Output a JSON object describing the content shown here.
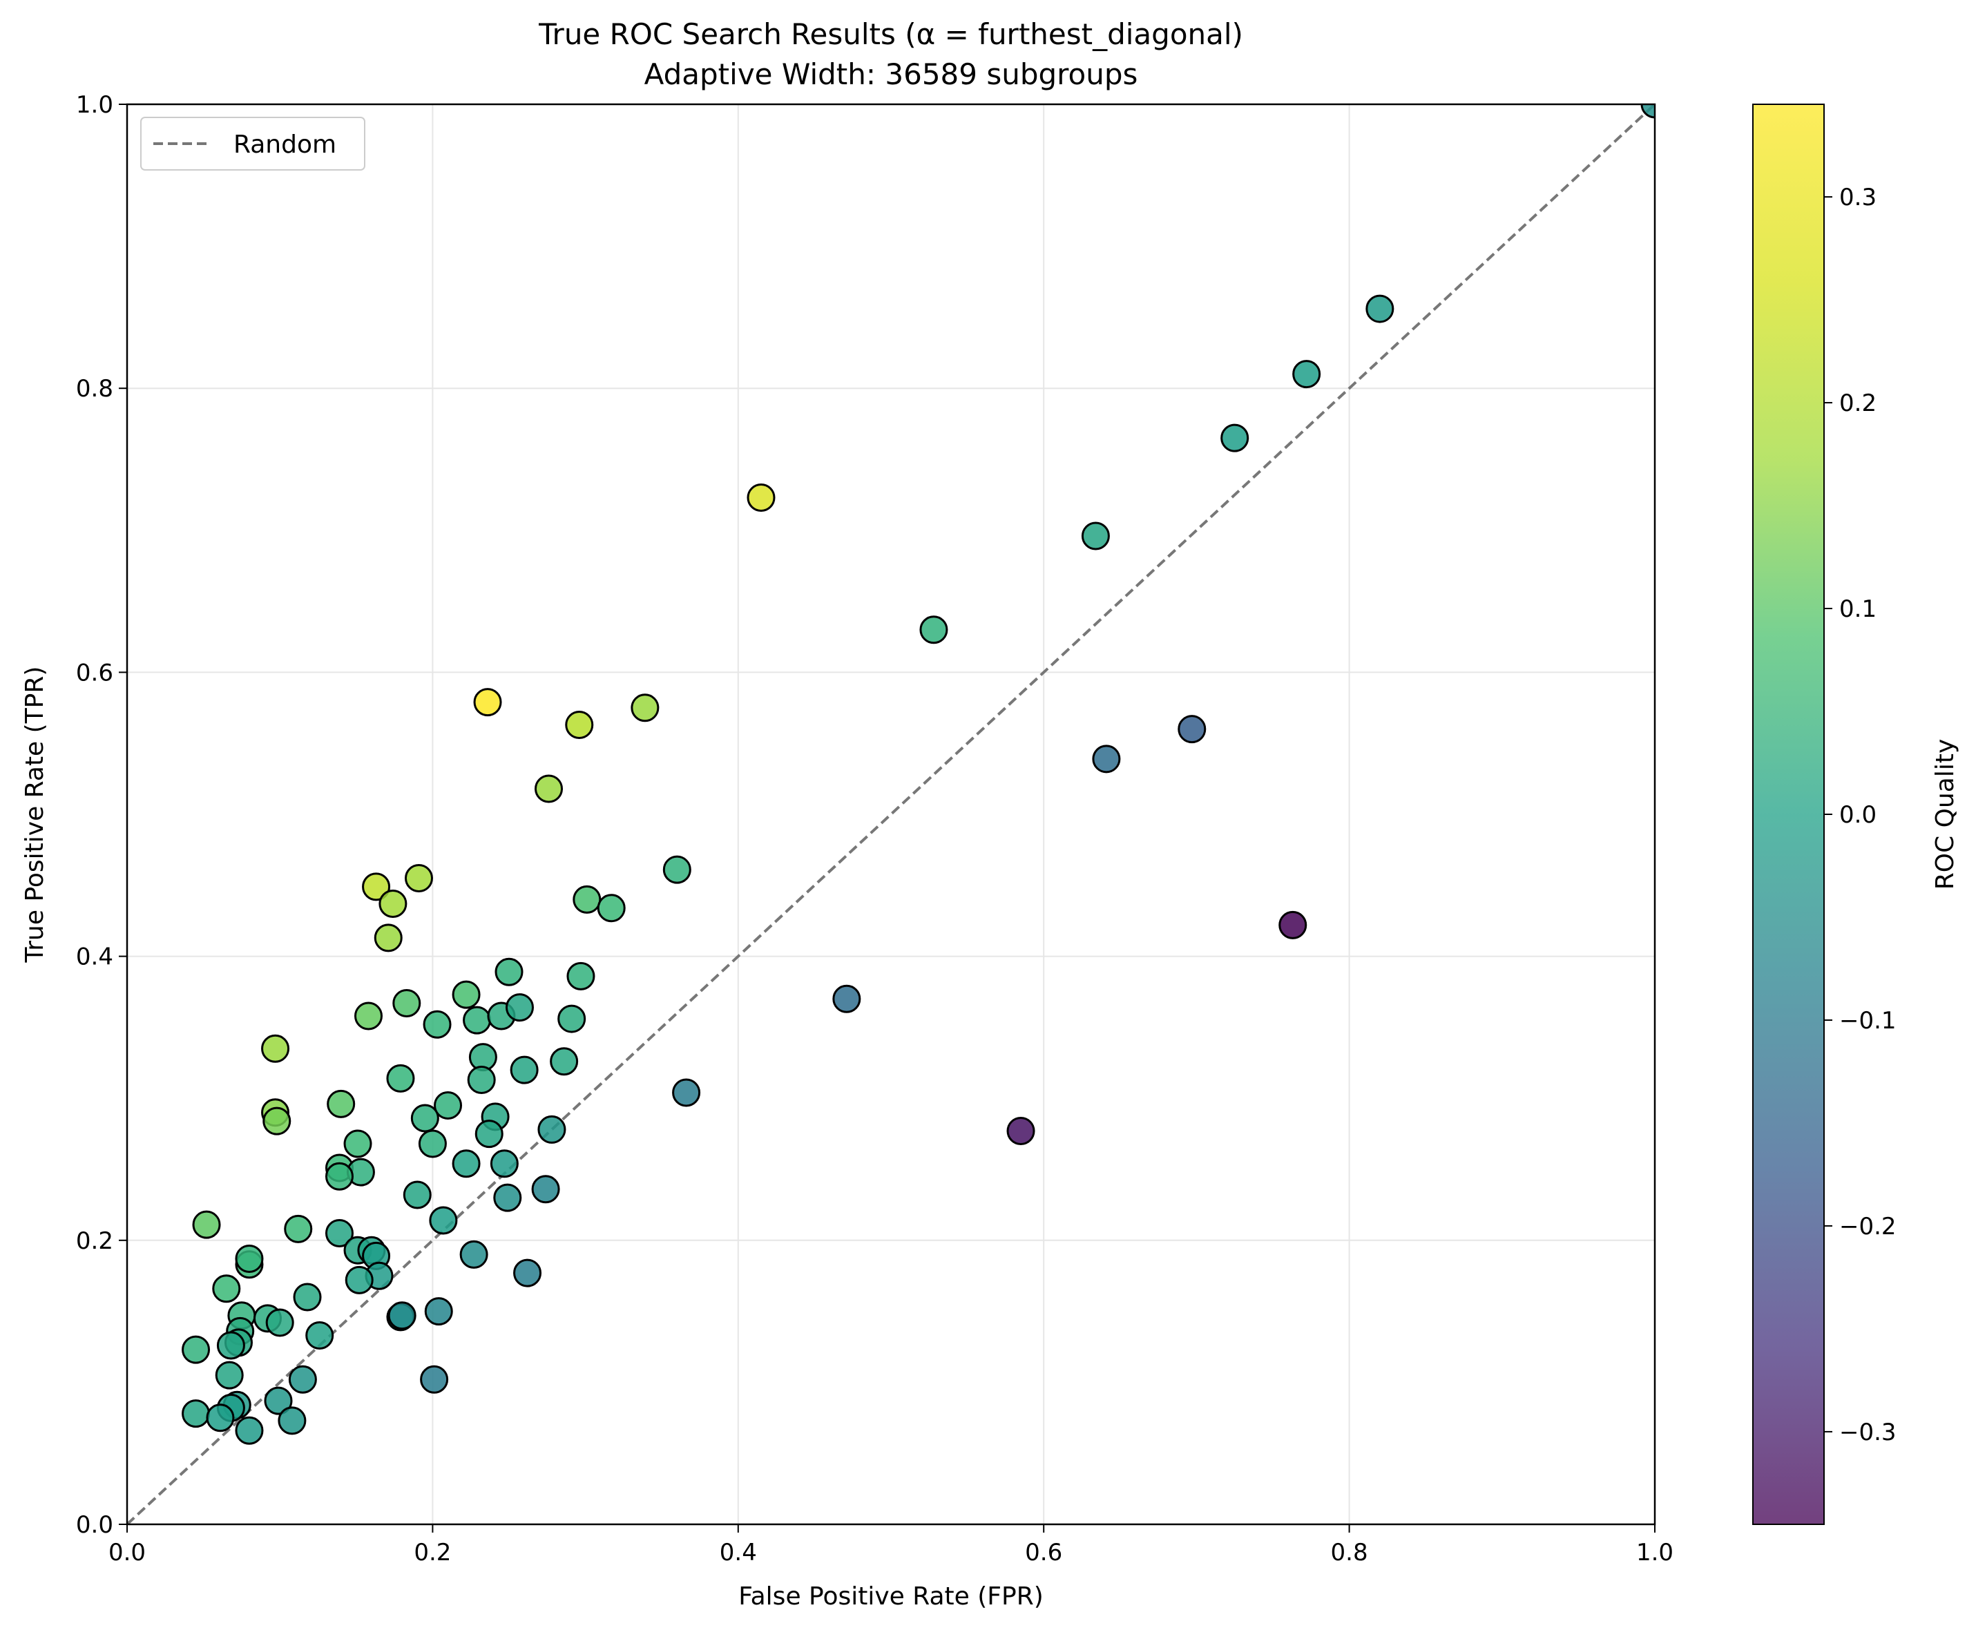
{
  "chart_data": {
    "type": "scatter",
    "title": "True ROC Search Results (α = furthest_diagonal)",
    "subtitle": "Adaptive Width: 36589 subgroups",
    "xlabel": "False Positive Rate (FPR)",
    "ylabel": "True Positive Rate (TPR)",
    "xlim": [
      0,
      1
    ],
    "ylim": [
      0,
      1
    ],
    "xticks": [
      "0.0",
      "0.2",
      "0.4",
      "0.6",
      "0.8",
      "1.0"
    ],
    "yticks": [
      "0.0",
      "0.2",
      "0.4",
      "0.6",
      "0.8",
      "1.0"
    ],
    "grid": true,
    "legend": {
      "position": "top-left",
      "entries": [
        "Random"
      ]
    },
    "reference_line": {
      "name": "Random",
      "style": "dashed",
      "color": "#777777",
      "from": [
        0,
        0
      ],
      "to": [
        1,
        1
      ]
    },
    "colorbar": {
      "label": "ROC Quality",
      "range": [
        -0.345,
        0.345
      ],
      "ticks": [
        "−0.3",
        "−0.2",
        "−0.1",
        "0.0",
        "0.1",
        "0.2",
        "0.3"
      ],
      "colormap": "viridis"
    },
    "points": [
      {
        "fpr": 1.0,
        "tpr": 1.0,
        "q": 0.0
      },
      {
        "fpr": 0.82,
        "tpr": 0.856,
        "q": 0.03
      },
      {
        "fpr": 0.772,
        "tpr": 0.81,
        "q": 0.04
      },
      {
        "fpr": 0.725,
        "tpr": 0.765,
        "q": 0.04
      },
      {
        "fpr": 0.634,
        "tpr": 0.696,
        "q": 0.06
      },
      {
        "fpr": 0.415,
        "tpr": 0.723,
        "q": 0.31
      },
      {
        "fpr": 0.528,
        "tpr": 0.63,
        "q": 0.1
      },
      {
        "fpr": 0.236,
        "tpr": 0.579,
        "q": 0.345
      },
      {
        "fpr": 0.296,
        "tpr": 0.563,
        "q": 0.27
      },
      {
        "fpr": 0.339,
        "tpr": 0.575,
        "q": 0.24
      },
      {
        "fpr": 0.276,
        "tpr": 0.518,
        "q": 0.24
      },
      {
        "fpr": 0.36,
        "tpr": 0.461,
        "q": 0.1
      },
      {
        "fpr": 0.697,
        "tpr": 0.56,
        "q": -0.14
      },
      {
        "fpr": 0.641,
        "tpr": 0.539,
        "q": -0.1
      },
      {
        "fpr": 0.763,
        "tpr": 0.422,
        "q": -0.34
      },
      {
        "fpr": 0.585,
        "tpr": 0.277,
        "q": -0.31
      },
      {
        "fpr": 0.471,
        "tpr": 0.37,
        "q": -0.1
      },
      {
        "fpr": 0.366,
        "tpr": 0.304,
        "q": -0.06
      },
      {
        "fpr": 0.163,
        "tpr": 0.449,
        "q": 0.28
      },
      {
        "fpr": 0.174,
        "tpr": 0.437,
        "q": 0.25
      },
      {
        "fpr": 0.191,
        "tpr": 0.455,
        "q": 0.25
      },
      {
        "fpr": 0.171,
        "tpr": 0.413,
        "q": 0.24
      },
      {
        "fpr": 0.301,
        "tpr": 0.44,
        "q": 0.14
      },
      {
        "fpr": 0.317,
        "tpr": 0.434,
        "q": 0.12
      },
      {
        "fpr": 0.297,
        "tpr": 0.386,
        "q": 0.1
      },
      {
        "fpr": 0.25,
        "tpr": 0.389,
        "q": 0.1
      },
      {
        "fpr": 0.222,
        "tpr": 0.373,
        "q": 0.14
      },
      {
        "fpr": 0.183,
        "tpr": 0.367,
        "q": 0.15
      },
      {
        "fpr": 0.158,
        "tpr": 0.358,
        "q": 0.18
      },
      {
        "fpr": 0.203,
        "tpr": 0.352,
        "q": 0.11
      },
      {
        "fpr": 0.229,
        "tpr": 0.355,
        "q": 0.1
      },
      {
        "fpr": 0.245,
        "tpr": 0.358,
        "q": 0.08
      },
      {
        "fpr": 0.257,
        "tpr": 0.364,
        "q": 0.06
      },
      {
        "fpr": 0.291,
        "tpr": 0.356,
        "q": 0.08
      },
      {
        "fpr": 0.097,
        "tpr": 0.335,
        "q": 0.24
      },
      {
        "fpr": 0.233,
        "tpr": 0.329,
        "q": 0.08
      },
      {
        "fpr": 0.26,
        "tpr": 0.32,
        "q": 0.06
      },
      {
        "fpr": 0.286,
        "tpr": 0.326,
        "q": 0.07
      },
      {
        "fpr": 0.179,
        "tpr": 0.314,
        "q": 0.11
      },
      {
        "fpr": 0.232,
        "tpr": 0.313,
        "q": 0.08
      },
      {
        "fpr": 0.14,
        "tpr": 0.296,
        "q": 0.16
      },
      {
        "fpr": 0.21,
        "tpr": 0.295,
        "q": 0.1
      },
      {
        "fpr": 0.097,
        "tpr": 0.29,
        "q": 0.22
      },
      {
        "fpr": 0.098,
        "tpr": 0.284,
        "q": 0.2
      },
      {
        "fpr": 0.195,
        "tpr": 0.286,
        "q": 0.09
      },
      {
        "fpr": 0.241,
        "tpr": 0.287,
        "q": 0.06
      },
      {
        "fpr": 0.278,
        "tpr": 0.278,
        "q": 0.02
      },
      {
        "fpr": 0.151,
        "tpr": 0.268,
        "q": 0.12
      },
      {
        "fpr": 0.2,
        "tpr": 0.268,
        "q": 0.09
      },
      {
        "fpr": 0.237,
        "tpr": 0.275,
        "q": 0.06
      },
      {
        "fpr": 0.139,
        "tpr": 0.251,
        "q": 0.12
      },
      {
        "fpr": 0.153,
        "tpr": 0.248,
        "q": 0.09
      },
      {
        "fpr": 0.139,
        "tpr": 0.245,
        "q": 0.11
      },
      {
        "fpr": 0.222,
        "tpr": 0.254,
        "q": 0.05
      },
      {
        "fpr": 0.247,
        "tpr": 0.254,
        "q": 0.03
      },
      {
        "fpr": 0.19,
        "tpr": 0.232,
        "q": 0.06
      },
      {
        "fpr": 0.249,
        "tpr": 0.23,
        "q": 0.0
      },
      {
        "fpr": 0.274,
        "tpr": 0.236,
        "q": -0.03
      },
      {
        "fpr": 0.052,
        "tpr": 0.211,
        "q": 0.17
      },
      {
        "fpr": 0.112,
        "tpr": 0.208,
        "q": 0.12
      },
      {
        "fpr": 0.139,
        "tpr": 0.205,
        "q": 0.06
      },
      {
        "fpr": 0.207,
        "tpr": 0.214,
        "q": 0.04
      },
      {
        "fpr": 0.151,
        "tpr": 0.193,
        "q": 0.06
      },
      {
        "fpr": 0.16,
        "tpr": 0.193,
        "q": 0.05
      },
      {
        "fpr": 0.163,
        "tpr": 0.189,
        "q": 0.04
      },
      {
        "fpr": 0.08,
        "tpr": 0.183,
        "q": 0.12
      },
      {
        "fpr": 0.08,
        "tpr": 0.187,
        "q": 0.11
      },
      {
        "fpr": 0.227,
        "tpr": 0.19,
        "q": -0.01
      },
      {
        "fpr": 0.165,
        "tpr": 0.175,
        "q": 0.03
      },
      {
        "fpr": 0.152,
        "tpr": 0.172,
        "q": 0.05
      },
      {
        "fpr": 0.262,
        "tpr": 0.177,
        "q": -0.05
      },
      {
        "fpr": 0.065,
        "tpr": 0.166,
        "q": 0.12
      },
      {
        "fpr": 0.118,
        "tpr": 0.16,
        "q": 0.07
      },
      {
        "fpr": 0.075,
        "tpr": 0.147,
        "q": 0.1
      },
      {
        "fpr": 0.092,
        "tpr": 0.145,
        "q": 0.08
      },
      {
        "fpr": 0.1,
        "tpr": 0.142,
        "q": 0.07
      },
      {
        "fpr": 0.179,
        "tpr": 0.146,
        "q": 0.0
      },
      {
        "fpr": 0.18,
        "tpr": 0.147,
        "q": -0.01
      },
      {
        "fpr": 0.204,
        "tpr": 0.15,
        "q": -0.03
      },
      {
        "fpr": 0.074,
        "tpr": 0.136,
        "q": 0.08
      },
      {
        "fpr": 0.073,
        "tpr": 0.128,
        "q": 0.07
      },
      {
        "fpr": 0.068,
        "tpr": 0.126,
        "q": 0.06
      },
      {
        "fpr": 0.126,
        "tpr": 0.133,
        "q": 0.05
      },
      {
        "fpr": 0.045,
        "tpr": 0.123,
        "q": 0.1
      },
      {
        "fpr": 0.067,
        "tpr": 0.105,
        "q": 0.06
      },
      {
        "fpr": 0.115,
        "tpr": 0.102,
        "q": 0.01
      },
      {
        "fpr": 0.201,
        "tpr": 0.102,
        "q": -0.06
      },
      {
        "fpr": 0.099,
        "tpr": 0.087,
        "q": 0.02
      },
      {
        "fpr": 0.072,
        "tpr": 0.084,
        "q": 0.03
      },
      {
        "fpr": 0.068,
        "tpr": 0.082,
        "q": 0.04
      },
      {
        "fpr": 0.045,
        "tpr": 0.078,
        "q": 0.06
      },
      {
        "fpr": 0.061,
        "tpr": 0.075,
        "q": 0.04
      },
      {
        "fpr": 0.108,
        "tpr": 0.073,
        "q": 0.02
      },
      {
        "fpr": 0.08,
        "tpr": 0.066,
        "q": 0.03
      }
    ]
  }
}
